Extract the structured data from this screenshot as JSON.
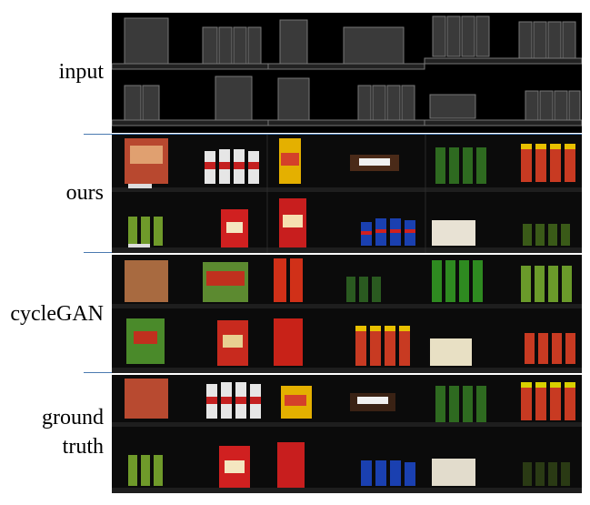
{
  "figure": {
    "row_labels": {
      "input": "input",
      "ours": "ours",
      "cyclegan": "cycleGAN",
      "ground_truth_line1": "ground",
      "ground_truth_line2": "truth"
    },
    "separator_color": "#4a7ab0",
    "background": "#000000"
  }
}
